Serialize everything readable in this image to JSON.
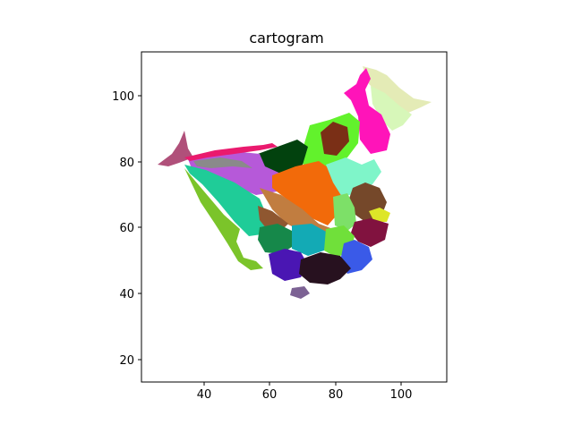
{
  "figure": {
    "title": "cartogram",
    "x_ticks": [
      "40",
      "60",
      "80",
      "100"
    ],
    "y_ticks": [
      "20",
      "40",
      "60",
      "80",
      "100"
    ]
  },
  "chart_data": {
    "type": "map",
    "title": "cartogram",
    "xlabel": "",
    "ylabel": "",
    "xlim": [
      21,
      114
    ],
    "ylim": [
      13.5,
      113
    ],
    "x_ticks": [
      40,
      60,
      80,
      100
    ],
    "y_ticks": [
      20,
      40,
      60,
      80,
      100
    ],
    "grid": false,
    "legend": "none",
    "regions": [
      {
        "color": "#e4ebb6"
      },
      {
        "color": "#d7f7b9"
      },
      {
        "color": "#ff14b9"
      },
      {
        "color": "#62f22c"
      },
      {
        "color": "#7a2f16"
      },
      {
        "color": "#02420e"
      },
      {
        "color": "#b659d9"
      },
      {
        "color": "#b0507a"
      },
      {
        "color": "#ea1a6e"
      },
      {
        "color": "#8a8a8a"
      },
      {
        "color": "#1fcc98"
      },
      {
        "color": "#7bc42a"
      },
      {
        "color": "#f26a0a"
      },
      {
        "color": "#7ff5c9"
      },
      {
        "color": "#c17d40"
      },
      {
        "color": "#8f5730"
      },
      {
        "color": "#75482a"
      },
      {
        "color": "#7de068"
      },
      {
        "color": "#dde628"
      },
      {
        "color": "#81123f"
      },
      {
        "color": "#16884a"
      },
      {
        "color": "#13aab5"
      },
      {
        "color": "#70e03a"
      },
      {
        "color": "#3a5ae8"
      },
      {
        "color": "#4a16b3"
      },
      {
        "color": "#27111f"
      },
      {
        "color": "#7c6294"
      }
    ]
  }
}
